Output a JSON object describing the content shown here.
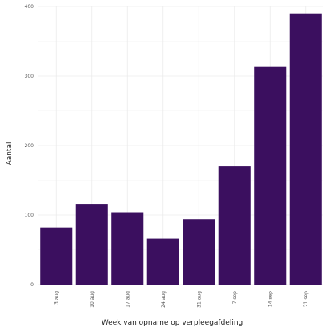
{
  "chart_data": {
    "type": "bar",
    "categories": [
      "3 aug",
      "10 aug",
      "17 aug",
      "24 aug",
      "31 aug",
      "7 sep",
      "14 sep",
      "21 sep"
    ],
    "values": [
      82,
      116,
      104,
      66,
      94,
      170,
      313,
      390
    ],
    "xlabel": "Week van opname op verpleegafdeling",
    "ylabel": "Aantal",
    "ylim": [
      0,
      400
    ],
    "yticks": [
      0,
      100,
      200,
      300,
      400
    ],
    "bar_color": "#3b0f5f",
    "grid": true,
    "legend": "none"
  }
}
